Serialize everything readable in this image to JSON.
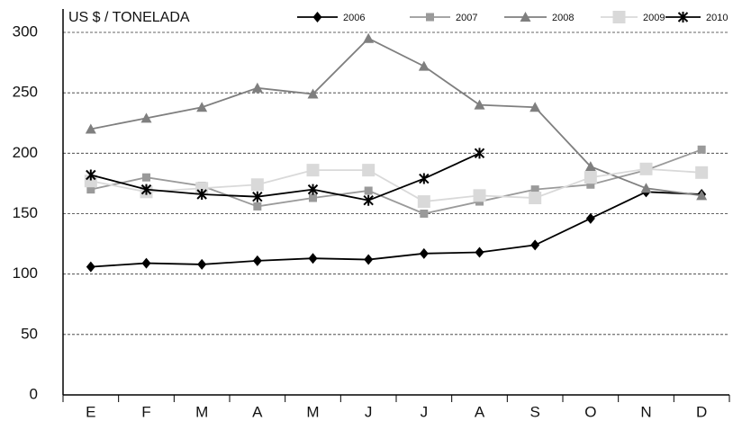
{
  "chart_data": {
    "type": "line",
    "y_label": "US $ / TONELADA",
    "categories": [
      "E",
      "F",
      "M",
      "A",
      "M",
      "J",
      "J",
      "A",
      "S",
      "O",
      "N",
      "D"
    ],
    "series": [
      {
        "name": "2006",
        "color": "#000000",
        "marker": "diamond",
        "values": [
          106,
          109,
          108,
          111,
          113,
          112,
          117,
          118,
          124,
          146,
          168,
          166
        ]
      },
      {
        "name": "2007",
        "color": "#9a9a9a",
        "marker": "square",
        "values": [
          170,
          180,
          173,
          156,
          163,
          169,
          150,
          160,
          170,
          174,
          186,
          203
        ]
      },
      {
        "name": "2008",
        "color": "#7f7f7f",
        "marker": "triangle",
        "values": [
          220,
          229,
          238,
          254,
          249,
          295,
          272,
          240,
          238,
          189,
          171,
          165
        ]
      },
      {
        "name": "2009",
        "color": "#d9d9d9",
        "marker": "bigsquare",
        "values": [
          177,
          168,
          171,
          174,
          186,
          186,
          160,
          165,
          163,
          180,
          187,
          184
        ]
      },
      {
        "name": "2010",
        "color": "#000000",
        "marker": "star",
        "values": [
          182,
          170,
          166,
          164,
          170,
          161,
          179,
          200,
          null,
          null,
          null,
          null
        ]
      }
    ],
    "ylim": [
      0,
      300
    ],
    "yticks": [
      0,
      50,
      100,
      150,
      200,
      250,
      300
    ],
    "grid": true
  }
}
